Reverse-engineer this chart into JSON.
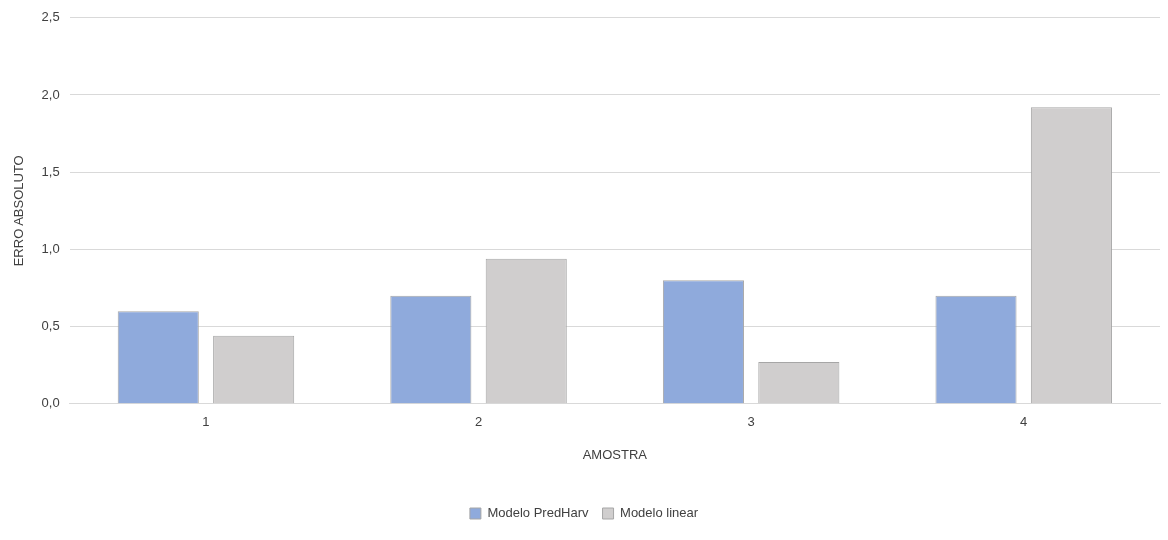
{
  "chart_data": {
    "type": "bar",
    "xlabel": "AMOSTRA",
    "ylabel": "ERRO ABSOLUTO",
    "categories": [
      "1",
      "2",
      "3",
      "4"
    ],
    "series": [
      {
        "name": "Modelo PredHarv",
        "color": "#8faadc",
        "values": [
          0.6,
          0.7,
          0.8,
          0.7
        ]
      },
      {
        "name": "Modelo linear",
        "color": "#d0cece",
        "values": [
          0.44,
          0.94,
          0.27,
          1.92
        ]
      }
    ],
    "ylim": [
      0,
      2.5
    ],
    "yticks": [
      {
        "value": 0,
        "label": "0,0"
      },
      {
        "value": 0.5,
        "label": "0,5"
      },
      {
        "value": 1,
        "label": "1,0"
      },
      {
        "value": 1.5,
        "label": "1,5"
      },
      {
        "value": 2,
        "label": "2,0"
      },
      {
        "value": 2.5,
        "label": "2,5"
      }
    ],
    "grid": "y",
    "legend": "bottom"
  }
}
